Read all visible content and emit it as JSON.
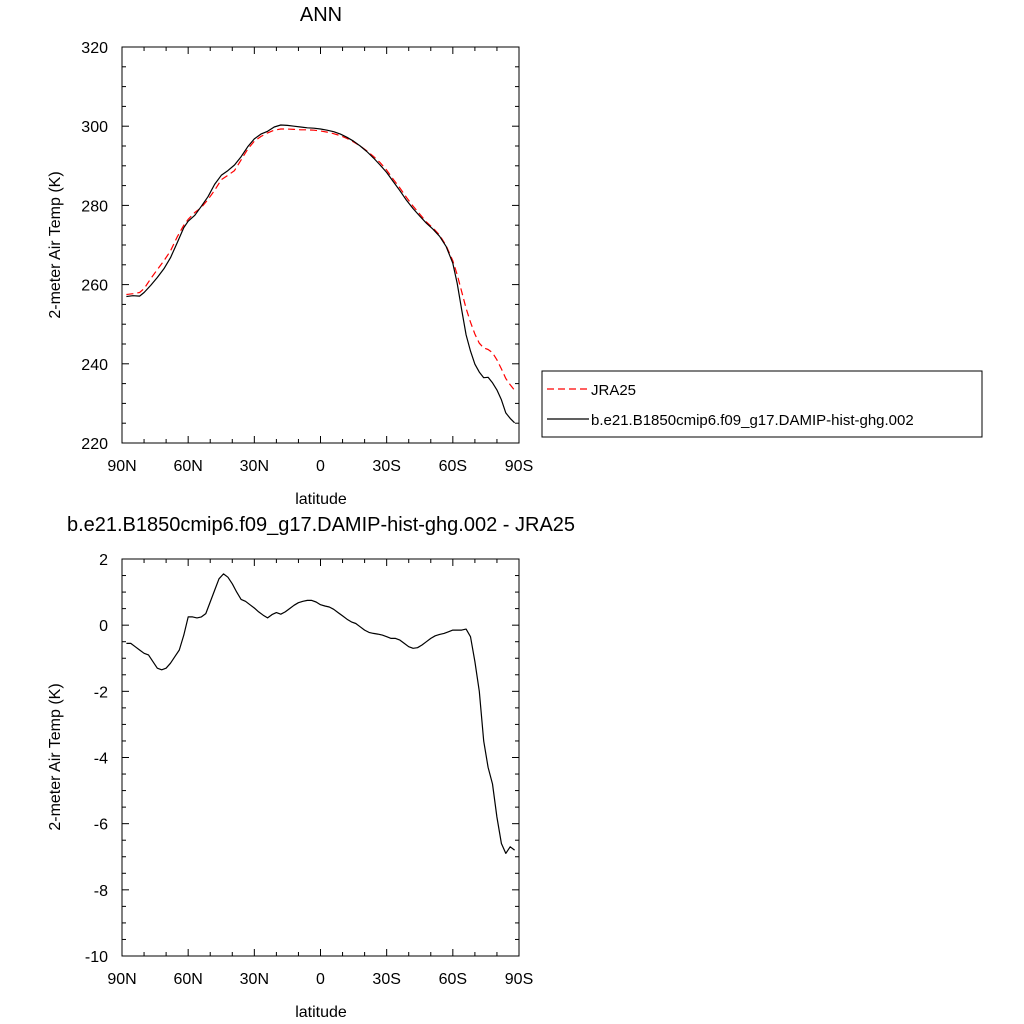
{
  "chart_data": [
    {
      "type": "line",
      "title": "ANN",
      "xlabel": "latitude",
      "ylabel": "2-meter Air Temp (K)",
      "xlim": [
        90,
        -90
      ],
      "ylim": [
        220,
        320
      ],
      "xticks": [
        90,
        60,
        30,
        0,
        -30,
        -60,
        -90
      ],
      "xtick_labels": [
        "90N",
        "60N",
        "30N",
        "0",
        "30S",
        "60S",
        "90S"
      ],
      "yticks": [
        220,
        240,
        260,
        280,
        300,
        320
      ],
      "ytick_labels": [
        "220",
        "240",
        "260",
        "280",
        "300",
        "320"
      ],
      "grid": false,
      "legend_position": "right",
      "series": [
        {
          "name": "JRA25",
          "color": "#ff0000",
          "dash": "dashed",
          "x": [
            88,
            85,
            82,
            80,
            77,
            74,
            71,
            68,
            65,
            62,
            60,
            57,
            54,
            51,
            48,
            45,
            42,
            39,
            36,
            33,
            30,
            27,
            24,
            21,
            18,
            15,
            12,
            9,
            6,
            3,
            0,
            -3,
            -6,
            -9,
            -12,
            -15,
            -18,
            -21,
            -24,
            -27,
            -30,
            -33,
            -36,
            -39,
            -42,
            -45,
            -48,
            -51,
            -54,
            -57,
            -60,
            -62,
            -64,
            -66,
            -68,
            -70,
            -72,
            -74,
            -76,
            -78,
            -80,
            -82,
            -84,
            -86,
            -88
          ],
          "y": [
            257.5,
            257.7,
            258,
            259,
            261.5,
            263.8,
            266,
            268.5,
            272,
            275,
            276.5,
            278.2,
            279.5,
            281.5,
            283.8,
            286.5,
            287.6,
            288.8,
            291.5,
            294.2,
            296.2,
            297.4,
            298.3,
            299,
            299.3,
            299.3,
            299.2,
            299.1,
            299.1,
            299,
            298.8,
            298.5,
            298.1,
            297.6,
            296.9,
            296,
            295,
            293.8,
            292.4,
            290.8,
            288.9,
            286.6,
            284.4,
            282,
            279.8,
            277.8,
            275.8,
            274.3,
            272.5,
            269.8,
            266,
            262.5,
            258.2,
            254,
            250.5,
            247.5,
            245.2,
            244,
            243.6,
            242.8,
            241,
            238.7,
            236.3,
            234.7,
            233.3
          ]
        },
        {
          "name": "b.e21.B1850cmip6.f09_g17.DAMIP-hist-ghg.002",
          "color": "#000000",
          "dash": "solid",
          "x": [
            88,
            85,
            82,
            80,
            77,
            74,
            71,
            68,
            65,
            62,
            60,
            57,
            54,
            51,
            48,
            45,
            42,
            39,
            36,
            33,
            30,
            27,
            24,
            21,
            18,
            15,
            12,
            9,
            6,
            3,
            0,
            -3,
            -6,
            -9,
            -12,
            -15,
            -18,
            -21,
            -24,
            -27,
            -30,
            -33,
            -36,
            -39,
            -42,
            -45,
            -48,
            -51,
            -54,
            -57,
            -60,
            -62,
            -64,
            -66,
            -68,
            -70,
            -72,
            -74,
            -76,
            -78,
            -80,
            -82,
            -84,
            -86,
            -88
          ],
          "y": [
            257,
            257.2,
            257.1,
            258,
            259.8,
            261.8,
            264,
            266.8,
            270.5,
            274.4,
            276,
            277.5,
            279.8,
            282.2,
            285.3,
            287.6,
            288.8,
            290.2,
            292.3,
            294.8,
            296.8,
            298,
            298.7,
            299.8,
            300.3,
            300.2,
            300,
            299.8,
            299.6,
            299.5,
            299.3,
            299.0,
            298.6,
            298.0,
            297.2,
            296.2,
            295.0,
            293.6,
            292.0,
            290.2,
            288.3,
            286.0,
            283.7,
            281.3,
            279.2,
            277.3,
            275.5,
            274.0,
            272.2,
            269.6,
            265.4,
            260.3,
            253.6,
            247.3,
            243.2,
            239.9,
            237.9,
            236.5,
            236.6,
            235.2,
            233.4,
            230.9,
            227.6,
            226.2,
            225.1
          ]
        }
      ]
    },
    {
      "type": "line",
      "title": "b.e21.B1850cmip6.f09_g17.DAMIP-hist-ghg.002 - JRA25",
      "xlabel": "latitude",
      "ylabel": "2-meter Air Temp (K)",
      "xlim": [
        90,
        -90
      ],
      "ylim": [
        -10,
        2
      ],
      "xticks": [
        90,
        60,
        30,
        0,
        -30,
        -60,
        -90
      ],
      "xtick_labels": [
        "90N",
        "60N",
        "30N",
        "0",
        "30S",
        "60S",
        "90S"
      ],
      "yticks": [
        -10,
        -8,
        -6,
        -4,
        -2,
        0,
        2
      ],
      "ytick_labels": [
        "-10",
        "-8",
        "-6",
        "-4",
        "-2",
        "0",
        "2"
      ],
      "grid": false,
      "series": [
        {
          "color": "#000000",
          "dash": "solid",
          "x": [
            88,
            86,
            84,
            82,
            80,
            78,
            76,
            74,
            72,
            70,
            68,
            66,
            64,
            62,
            60,
            58,
            56,
            54,
            52,
            50,
            48,
            46,
            44,
            42,
            40,
            38,
            36,
            34,
            32,
            30,
            28,
            26,
            24,
            22,
            20,
            18,
            16,
            14,
            12,
            10,
            8,
            6,
            4,
            2,
            0,
            -2,
            -4,
            -6,
            -8,
            -10,
            -12,
            -14,
            -16,
            -18,
            -20,
            -22,
            -24,
            -26,
            -28,
            -30,
            -32,
            -34,
            -36,
            -38,
            -40,
            -42,
            -44,
            -46,
            -48,
            -50,
            -52,
            -54,
            -56,
            -58,
            -60,
            -62,
            -64,
            -66,
            -68,
            -70,
            -72,
            -74,
            -76,
            -78,
            -80,
            -82,
            -84,
            -86,
            -88
          ],
          "y": [
            -0.55,
            -0.55,
            -0.65,
            -0.75,
            -0.85,
            -0.9,
            -1.1,
            -1.3,
            -1.35,
            -1.3,
            -1.15,
            -0.95,
            -0.75,
            -0.3,
            0.25,
            0.25,
            0.22,
            0.25,
            0.35,
            0.7,
            1.05,
            1.4,
            1.55,
            1.45,
            1.25,
            1.0,
            0.78,
            0.72,
            0.62,
            0.52,
            0.4,
            0.3,
            0.22,
            0.32,
            0.38,
            0.33,
            0.4,
            0.5,
            0.6,
            0.68,
            0.72,
            0.75,
            0.75,
            0.7,
            0.62,
            0.58,
            0.55,
            0.48,
            0.38,
            0.28,
            0.18,
            0.1,
            0.05,
            -0.05,
            -0.15,
            -0.22,
            -0.25,
            -0.27,
            -0.3,
            -0.35,
            -0.4,
            -0.4,
            -0.45,
            -0.55,
            -0.65,
            -0.7,
            -0.68,
            -0.6,
            -0.5,
            -0.4,
            -0.32,
            -0.28,
            -0.25,
            -0.2,
            -0.15,
            -0.15,
            -0.15,
            -0.12,
            -0.35,
            -1.1,
            -2.0,
            -3.5,
            -4.3,
            -4.8,
            -5.8,
            -6.6,
            -6.9,
            -6.7,
            -6.8
          ]
        }
      ]
    }
  ]
}
